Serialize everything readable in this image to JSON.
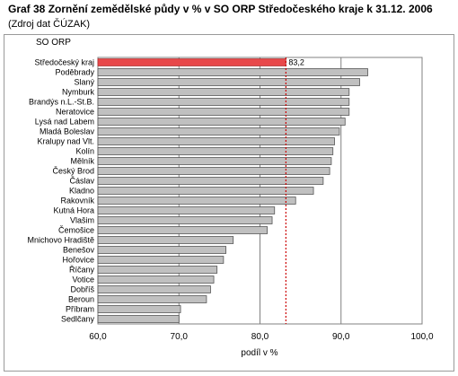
{
  "chart_data": {
    "type": "bar",
    "orientation": "horizontal",
    "title": "Graf 38 Zornění zemědělské půdy v % v SO ORP Středočeského kraje k 31.12. 2006",
    "subtitle": "(Zdroj dat ČÚZAK)",
    "legend_label": "SO ORP",
    "xlabel": "podíl v %",
    "xlim": [
      60,
      100
    ],
    "xticks": [
      "60,0",
      "70,0",
      "80,0",
      "90,0",
      "100,0"
    ],
    "grid": "vertical",
    "reference_value": 83.2,
    "highlight_label": "83,2",
    "highlight_color": "#e8484a",
    "bar_color": "#c0c0c0",
    "reference_line_color": "#cc0000",
    "categories": [
      "Středočeský kraj",
      "Poděbrady",
      "Slaný",
      "Nymburk",
      "Brandýs n.L.-St.B.",
      "Neratovice",
      "Lysá nad Labem",
      "Mladá Boleslav",
      "Kralupy nad Vlt.",
      "Kolín",
      "Mělník",
      "Český Brod",
      "Čáslav",
      "Kladno",
      "Rakovník",
      "Kutná Hora",
      "Vlašim",
      "Čemošice",
      "Mnichovo Hradiště",
      "Benešov",
      "Hořovice",
      "Říčany",
      "Votice",
      "Dobříš",
      "Beroun",
      "Příbram",
      "Sedlčany"
    ],
    "values": [
      83.2,
      93.3,
      92.3,
      91.0,
      91.0,
      91.0,
      90.5,
      89.8,
      89.2,
      89.0,
      88.8,
      88.6,
      87.8,
      86.6,
      84.4,
      81.8,
      81.5,
      80.9,
      76.7,
      75.8,
      75.5,
      74.7,
      74.3,
      73.9,
      73.4,
      70.2,
      70.0
    ]
  }
}
